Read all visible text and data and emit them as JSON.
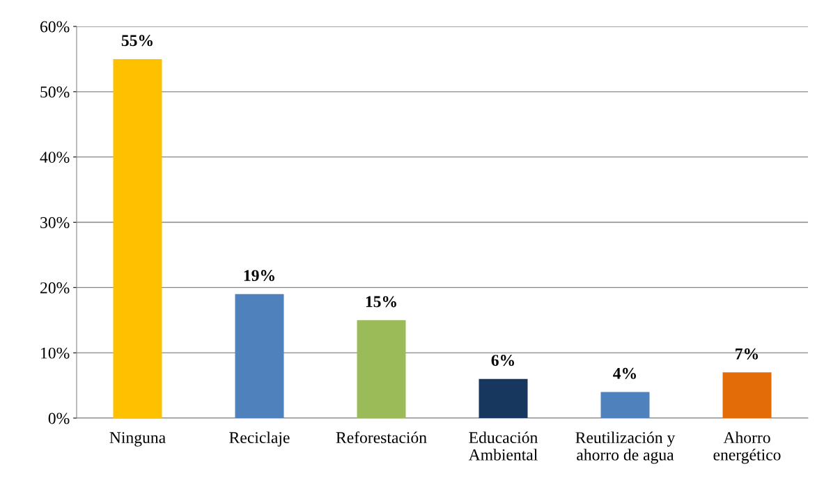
{
  "chart_data": {
    "type": "bar",
    "categories": [
      "Ninguna",
      "Reciclaje",
      "Reforestación",
      "Educación\nAmbiental",
      "Reutilización y\nahorro de agua",
      "Ahorro\nenergético"
    ],
    "values": [
      55,
      19,
      15,
      6,
      4,
      7
    ],
    "value_labels": [
      "55%",
      "19%",
      "15%",
      "6%",
      "4%",
      "7%"
    ],
    "colors": [
      "#ffc000",
      "#4f81bd",
      "#9bbb59",
      "#17375e",
      "#4f81bd",
      "#e36c09"
    ],
    "ylim": [
      0,
      60
    ],
    "yticks": [
      {
        "value": 0,
        "label": "0%"
      },
      {
        "value": 10,
        "label": "10%"
      },
      {
        "value": 20,
        "label": "20%"
      },
      {
        "value": 30,
        "label": "30%"
      },
      {
        "value": 40,
        "label": "40%"
      },
      {
        "value": 50,
        "label": "50%"
      },
      {
        "value": 60,
        "label": "60%"
      }
    ],
    "grid": "y"
  }
}
